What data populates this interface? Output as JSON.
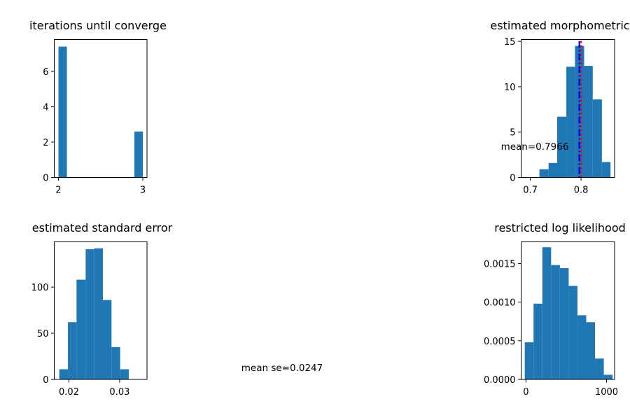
{
  "chart_data": [
    {
      "type": "bar",
      "title": "iterations until converge",
      "xlabel": "",
      "ylabel": "",
      "xlim": [
        1.95,
        3.05
      ],
      "ylim": [
        0,
        7.8
      ],
      "xticks": [
        2,
        3
      ],
      "yticks": [
        0,
        2,
        4,
        6
      ],
      "bins": [
        {
          "x0": 2.0,
          "x1": 2.1,
          "value": 7.4
        },
        {
          "x0": 2.9,
          "x1": 3.0,
          "value": 2.6
        }
      ],
      "color": "#1f77b4"
    },
    {
      "type": "bar",
      "title": "estimated morphometric",
      "xlabel": "",
      "ylabel": "",
      "xlim": [
        0.682,
        0.866
      ],
      "ylim": [
        0,
        15.2
      ],
      "xticks": [
        0.7,
        0.8
      ],
      "yticks": [
        0,
        5,
        10,
        15
      ],
      "bins": [
        {
          "x0": 0.718,
          "x1": 0.736,
          "value": 0.9
        },
        {
          "x0": 0.736,
          "x1": 0.753,
          "value": 1.6
        },
        {
          "x0": 0.753,
          "x1": 0.771,
          "value": 6.7
        },
        {
          "x0": 0.771,
          "x1": 0.788,
          "value": 12.2
        },
        {
          "x0": 0.788,
          "x1": 0.806,
          "value": 14.5
        },
        {
          "x0": 0.806,
          "x1": 0.823,
          "value": 12.3
        },
        {
          "x0": 0.823,
          "x1": 0.841,
          "value": 8.6
        },
        {
          "x0": 0.841,
          "x1": 0.858,
          "value": 1.7
        }
      ],
      "vlines": [
        {
          "x": 0.8,
          "color": "#ff0000",
          "style": "dotted"
        },
        {
          "x": 0.7966,
          "color": "#0000ff",
          "style": "dashdot"
        }
      ],
      "annotation": "mean=0.7966",
      "color": "#1f77b4"
    },
    {
      "type": "bar",
      "title": "estimated standard error",
      "xlabel": "",
      "ylabel": "",
      "xlim": [
        0.0171,
        0.0354
      ],
      "ylim": [
        0,
        149
      ],
      "xticks": [
        0.02,
        0.03
      ],
      "xticklabels": [
        "0.02",
        "0.03"
      ],
      "yticks": [
        0,
        50,
        100
      ],
      "bins": [
        {
          "x0": 0.0181,
          "x1": 0.0198,
          "value": 11
        },
        {
          "x0": 0.0198,
          "x1": 0.0215,
          "value": 62
        },
        {
          "x0": 0.0215,
          "x1": 0.0233,
          "value": 108
        },
        {
          "x0": 0.0233,
          "x1": 0.025,
          "value": 141
        },
        {
          "x0": 0.025,
          "x1": 0.0267,
          "value": 142
        },
        {
          "x0": 0.0267,
          "x1": 0.0284,
          "value": 86
        },
        {
          "x0": 0.0284,
          "x1": 0.0301,
          "value": 35
        },
        {
          "x0": 0.0301,
          "x1": 0.0318,
          "value": 11
        }
      ],
      "color": "#1f77b4"
    },
    {
      "type": "text",
      "annotation": "mean se=0.0247"
    },
    {
      "type": "bar",
      "title": "restricted log likelihood",
      "xlabel": "",
      "ylabel": "",
      "xlim": [
        -60,
        1100
      ],
      "ylim": [
        0,
        0.00178
      ],
      "xticks": [
        0,
        1000
      ],
      "yticks": [
        0,
        0.0005,
        0.001,
        0.0015
      ],
      "yticklabels": [
        "0.0000",
        "0.0005",
        "0.0010",
        "0.0015"
      ],
      "bins": [
        {
          "x0": -15,
          "x1": 94,
          "value": 0.00048
        },
        {
          "x0": 94,
          "x1": 203,
          "value": 0.00098
        },
        {
          "x0": 203,
          "x1": 312,
          "value": 0.00171
        },
        {
          "x0": 312,
          "x1": 421,
          "value": 0.00148
        },
        {
          "x0": 421,
          "x1": 530,
          "value": 0.00144
        },
        {
          "x0": 530,
          "x1": 639,
          "value": 0.00121
        },
        {
          "x0": 639,
          "x1": 748,
          "value": 0.00083
        },
        {
          "x0": 748,
          "x1": 857,
          "value": 0.00074
        },
        {
          "x0": 857,
          "x1": 966,
          "value": 0.00027
        },
        {
          "x0": 966,
          "x1": 1075,
          "value": 6e-05
        }
      ],
      "color": "#1f77b4"
    }
  ]
}
